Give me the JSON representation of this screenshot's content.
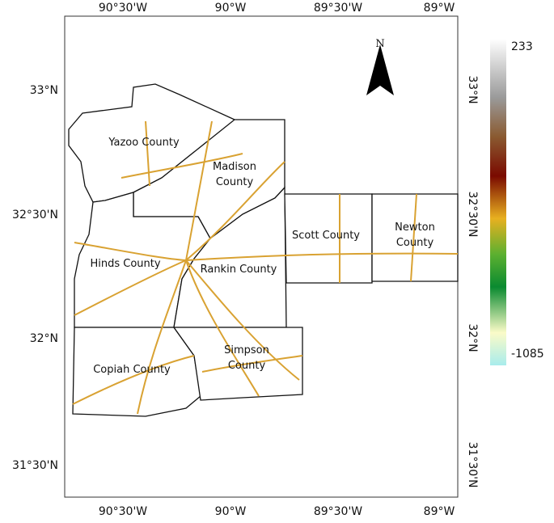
{
  "map": {
    "north_label": "N",
    "top_labels": [
      "90°30'W",
      "90°W",
      "89°30'W",
      "89°W"
    ],
    "bottom_labels": [
      "90°30'W",
      "90°W",
      "89°30'W",
      "89°W"
    ],
    "left_labels": [
      "33°N",
      "32°30'N",
      "32°N",
      "31°30'N"
    ],
    "right_labels": [
      "33°N",
      "32°30'N",
      "32°N",
      "31°30'N"
    ],
    "counties": [
      {
        "lines": [
          "Yazoo County"
        ]
      },
      {
        "lines": [
          "Madison",
          "County"
        ]
      },
      {
        "lines": [
          "Scott County"
        ]
      },
      {
        "lines": [
          "Newton",
          "County"
        ]
      },
      {
        "lines": [
          "Hinds County"
        ]
      },
      {
        "lines": [
          "Rankin County"
        ]
      },
      {
        "lines": [
          "Simpson",
          "County"
        ]
      },
      {
        "lines": [
          "Copiah County"
        ]
      }
    ],
    "legend": {
      "max": 233,
      "min": -1085
    }
  }
}
